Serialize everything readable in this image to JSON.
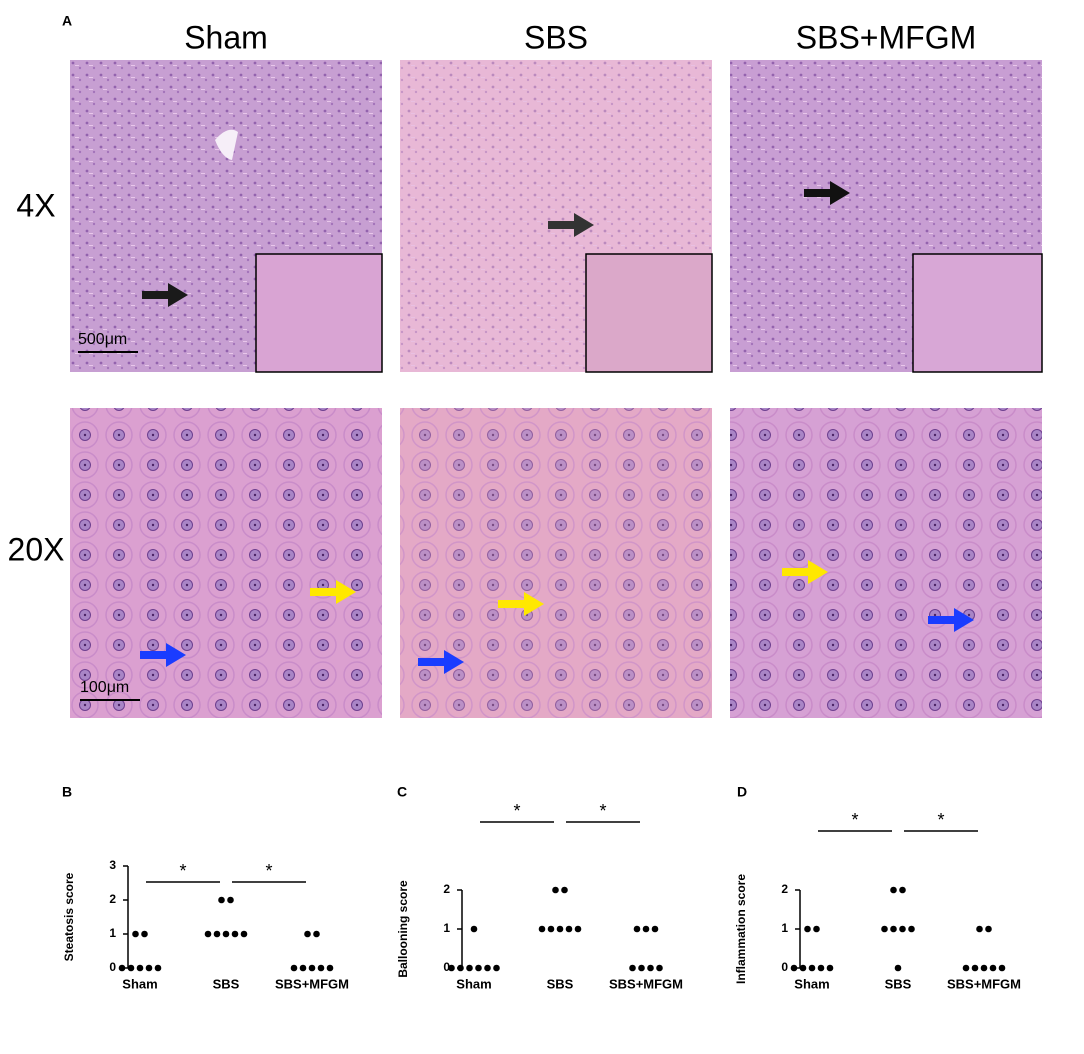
{
  "figure": {
    "panel_label": "A",
    "columns": [
      "Sham",
      "SBS",
      "SBS+MFGM"
    ],
    "rows": [
      "4X",
      "20X"
    ],
    "scale_bars": [
      "500μm",
      "100μm"
    ]
  },
  "chart_data": [
    {
      "type": "strip",
      "panel_label": "B",
      "y_label": "Steatosis score",
      "categories": [
        "Sham",
        "SBS",
        "SBS+MFGM"
      ],
      "values": [
        [
          0,
          0,
          0,
          0,
          0,
          1,
          1
        ],
        [
          1,
          1,
          1,
          1,
          1,
          2,
          2
        ],
        [
          0,
          0,
          0,
          0,
          0,
          1,
          1
        ]
      ],
      "ylim": [
        0,
        3
      ],
      "yticks": [
        0,
        1,
        2,
        3
      ],
      "annotations": [
        "*",
        "*"
      ],
      "color": "#000000"
    },
    {
      "type": "strip",
      "panel_label": "C",
      "y_label": "Ballooning score",
      "categories": [
        "Sham",
        "SBS",
        "SBS+MFGM"
      ],
      "values": [
        [
          0,
          0,
          0,
          0,
          0,
          0,
          1
        ],
        [
          1,
          1,
          1,
          1,
          1,
          2,
          2
        ],
        [
          0,
          0,
          0,
          0,
          1,
          1,
          1
        ]
      ],
      "ylim": [
        0,
        2
      ],
      "yticks": [
        0,
        1,
        2
      ],
      "annotations": [
        "*",
        "*"
      ],
      "color": "#000000"
    },
    {
      "type": "strip",
      "panel_label": "D",
      "y_label": "Inflammation score",
      "categories": [
        "Sham",
        "SBS",
        "SBS+MFGM"
      ],
      "values": [
        [
          0,
          0,
          0,
          0,
          0,
          1,
          1
        ],
        [
          0,
          1,
          1,
          1,
          1,
          2,
          2
        ],
        [
          0,
          0,
          0,
          0,
          0,
          1,
          1
        ]
      ],
      "ylim": [
        0,
        2
      ],
      "yticks": [
        0,
        1,
        2
      ],
      "annotations": [
        "*",
        "*"
      ],
      "color": "#000000"
    }
  ]
}
